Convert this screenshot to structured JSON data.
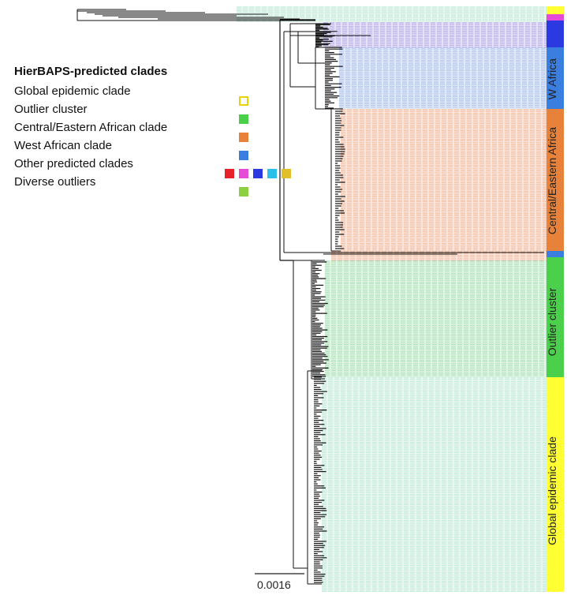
{
  "legend": {
    "title": "HierBAPS-predicted clades",
    "items": [
      {
        "label": "Global epidemic clade",
        "colors": [
          "#ffffff"
        ],
        "border": "#e8d20a"
      },
      {
        "label": "Outlier cluster",
        "colors": [
          "#4ad04a"
        ]
      },
      {
        "label": "Central/Eastern African clade",
        "colors": [
          "#e8823a"
        ]
      },
      {
        "label": "West African clade",
        "colors": [
          "#3a7ee0"
        ]
      },
      {
        "label": "Other predicted clades",
        "colors": [
          "#e8222a",
          "#e84ad8",
          "#2a3ae0",
          "#2ac0e8",
          "#e0c02a"
        ]
      },
      {
        "label": "Diverse outliers",
        "colors": [
          "#8ad040"
        ]
      }
    ]
  },
  "bands": [
    {
      "label": "",
      "color": "#ffff33"
    },
    {
      "label": "",
      "color": "#e84ad8"
    },
    {
      "label": "",
      "color": "#2a3ae0"
    },
    {
      "label": "W Africa",
      "color": "#3a7ee0"
    },
    {
      "label": "Central/Eastern Africa",
      "color": "#e8823a"
    },
    {
      "label": "Outlier cluster",
      "color": "#4ad04a"
    },
    {
      "label": "Global epidemic clade",
      "color": "#ffff33"
    }
  ],
  "scale_bar": {
    "label": "0.0016"
  },
  "colors": {
    "tip_global": "#bfe8d8",
    "tip_outlier": "#a8e0b4",
    "tip_central": "#f2b89a",
    "tip_west": "#a8c0ec",
    "tip_purple": "#b4a8e8",
    "branch": "#111111"
  }
}
